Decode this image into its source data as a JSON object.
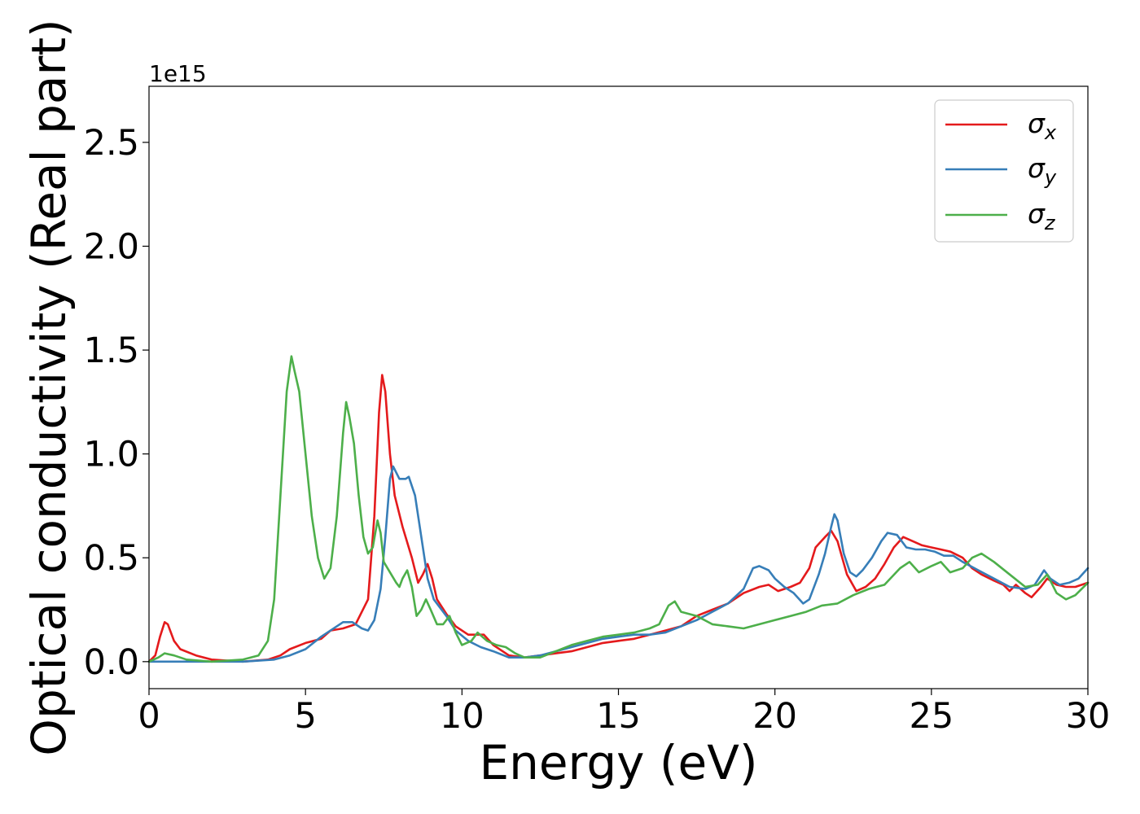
{
  "chart_data": {
    "type": "line",
    "title": "",
    "xlabel": "Energy (eV)",
    "ylabel": "Optical conductivity (Real part)",
    "offset_text": "1e15",
    "xlim": [
      0,
      30
    ],
    "ylim": [
      -0.13,
      2.77
    ],
    "y_scale_factor": 1000000000000000.0,
    "xticks": [
      0,
      5,
      10,
      15,
      20,
      25,
      30
    ],
    "xtick_labels": [
      "0",
      "5",
      "10",
      "15",
      "20",
      "25",
      "30"
    ],
    "yticks": [
      0.0,
      0.5,
      1.0,
      1.5,
      2.0,
      2.5
    ],
    "ytick_labels": [
      "0.0",
      "0.5",
      "1.0",
      "1.5",
      "2.0",
      "2.5"
    ],
    "grid": false,
    "legend_position": "top-right",
    "series": [
      {
        "name": "σ_x",
        "label_base": "σ",
        "label_sub": "x",
        "color": "#e41a1c",
        "points": [
          [
            0,
            0
          ],
          [
            0.2,
            0.03
          ],
          [
            0.35,
            0.12
          ],
          [
            0.5,
            0.19
          ],
          [
            0.6,
            0.18
          ],
          [
            0.8,
            0.1
          ],
          [
            1.0,
            0.06
          ],
          [
            1.5,
            0.03
          ],
          [
            2.0,
            0.01
          ],
          [
            3.0,
            0.0
          ],
          [
            3.8,
            0.01
          ],
          [
            4.2,
            0.03
          ],
          [
            4.5,
            0.06
          ],
          [
            5.0,
            0.09
          ],
          [
            5.5,
            0.11
          ],
          [
            5.8,
            0.15
          ],
          [
            6.2,
            0.16
          ],
          [
            6.6,
            0.18
          ],
          [
            7.0,
            0.3
          ],
          [
            7.2,
            0.7
          ],
          [
            7.35,
            1.2
          ],
          [
            7.45,
            1.38
          ],
          [
            7.55,
            1.3
          ],
          [
            7.7,
            1.0
          ],
          [
            7.85,
            0.8
          ],
          [
            8.1,
            0.65
          ],
          [
            8.4,
            0.5
          ],
          [
            8.6,
            0.38
          ],
          [
            8.75,
            0.42
          ],
          [
            8.9,
            0.47
          ],
          [
            9.05,
            0.4
          ],
          [
            9.2,
            0.3
          ],
          [
            9.5,
            0.23
          ],
          [
            9.8,
            0.17
          ],
          [
            10.2,
            0.13
          ],
          [
            10.5,
            0.13
          ],
          [
            10.7,
            0.13
          ],
          [
            11.0,
            0.08
          ],
          [
            11.5,
            0.03
          ],
          [
            12.0,
            0.02
          ],
          [
            12.5,
            0.03
          ],
          [
            13.0,
            0.04
          ],
          [
            13.5,
            0.05
          ],
          [
            14.0,
            0.07
          ],
          [
            14.5,
            0.09
          ],
          [
            15.0,
            0.1
          ],
          [
            15.5,
            0.11
          ],
          [
            16.0,
            0.13
          ],
          [
            16.5,
            0.15
          ],
          [
            17.0,
            0.17
          ],
          [
            17.5,
            0.22
          ],
          [
            18.0,
            0.25
          ],
          [
            18.5,
            0.28
          ],
          [
            19.0,
            0.33
          ],
          [
            19.5,
            0.36
          ],
          [
            19.8,
            0.37
          ],
          [
            20.1,
            0.34
          ],
          [
            20.5,
            0.36
          ],
          [
            20.8,
            0.38
          ],
          [
            21.1,
            0.45
          ],
          [
            21.3,
            0.55
          ],
          [
            21.6,
            0.6
          ],
          [
            21.8,
            0.63
          ],
          [
            22.0,
            0.58
          ],
          [
            22.3,
            0.42
          ],
          [
            22.6,
            0.34
          ],
          [
            22.9,
            0.36
          ],
          [
            23.2,
            0.4
          ],
          [
            23.5,
            0.47
          ],
          [
            23.8,
            0.55
          ],
          [
            24.1,
            0.6
          ],
          [
            24.4,
            0.58
          ],
          [
            24.7,
            0.56
          ],
          [
            25.0,
            0.55
          ],
          [
            25.3,
            0.54
          ],
          [
            25.6,
            0.53
          ],
          [
            26.0,
            0.5
          ],
          [
            26.3,
            0.45
          ],
          [
            26.6,
            0.42
          ],
          [
            27.0,
            0.39
          ],
          [
            27.3,
            0.37
          ],
          [
            27.5,
            0.34
          ],
          [
            27.7,
            0.37
          ],
          [
            28.0,
            0.33
          ],
          [
            28.2,
            0.31
          ],
          [
            28.5,
            0.36
          ],
          [
            28.7,
            0.4
          ],
          [
            29.0,
            0.37
          ],
          [
            29.3,
            0.36
          ],
          [
            29.6,
            0.36
          ],
          [
            30,
            0.38
          ]
        ]
      },
      {
        "name": "σ_y",
        "label_base": "σ",
        "label_sub": "y",
        "color": "#377eb8",
        "points": [
          [
            0,
            0
          ],
          [
            1.0,
            0.0
          ],
          [
            3.0,
            0.0
          ],
          [
            4.0,
            0.01
          ],
          [
            4.5,
            0.03
          ],
          [
            5.0,
            0.06
          ],
          [
            5.5,
            0.12
          ],
          [
            5.8,
            0.15
          ],
          [
            6.2,
            0.19
          ],
          [
            6.5,
            0.19
          ],
          [
            6.8,
            0.16
          ],
          [
            7.0,
            0.15
          ],
          [
            7.2,
            0.2
          ],
          [
            7.4,
            0.35
          ],
          [
            7.55,
            0.6
          ],
          [
            7.7,
            0.88
          ],
          [
            7.8,
            0.94
          ],
          [
            8.0,
            0.88
          ],
          [
            8.2,
            0.88
          ],
          [
            8.3,
            0.89
          ],
          [
            8.5,
            0.8
          ],
          [
            8.7,
            0.6
          ],
          [
            8.9,
            0.4
          ],
          [
            9.1,
            0.3
          ],
          [
            9.5,
            0.22
          ],
          [
            9.8,
            0.15
          ],
          [
            10.2,
            0.1
          ],
          [
            10.6,
            0.07
          ],
          [
            11.0,
            0.05
          ],
          [
            11.5,
            0.02
          ],
          [
            12.0,
            0.02
          ],
          [
            12.5,
            0.03
          ],
          [
            13.0,
            0.05
          ],
          [
            13.5,
            0.07
          ],
          [
            14.0,
            0.09
          ],
          [
            14.5,
            0.11
          ],
          [
            15.0,
            0.12
          ],
          [
            15.5,
            0.13
          ],
          [
            16.0,
            0.13
          ],
          [
            16.5,
            0.14
          ],
          [
            17.0,
            0.17
          ],
          [
            17.5,
            0.2
          ],
          [
            18.0,
            0.24
          ],
          [
            18.5,
            0.28
          ],
          [
            19.0,
            0.35
          ],
          [
            19.3,
            0.45
          ],
          [
            19.5,
            0.46
          ],
          [
            19.8,
            0.44
          ],
          [
            20.0,
            0.4
          ],
          [
            20.3,
            0.36
          ],
          [
            20.6,
            0.33
          ],
          [
            20.9,
            0.28
          ],
          [
            21.1,
            0.3
          ],
          [
            21.4,
            0.42
          ],
          [
            21.6,
            0.52
          ],
          [
            21.8,
            0.65
          ],
          [
            21.9,
            0.71
          ],
          [
            22.0,
            0.68
          ],
          [
            22.2,
            0.52
          ],
          [
            22.4,
            0.43
          ],
          [
            22.6,
            0.41
          ],
          [
            22.8,
            0.44
          ],
          [
            23.1,
            0.5
          ],
          [
            23.4,
            0.58
          ],
          [
            23.6,
            0.62
          ],
          [
            23.9,
            0.61
          ],
          [
            24.2,
            0.55
          ],
          [
            24.5,
            0.54
          ],
          [
            24.8,
            0.54
          ],
          [
            25.1,
            0.53
          ],
          [
            25.4,
            0.51
          ],
          [
            25.7,
            0.51
          ],
          [
            26.0,
            0.48
          ],
          [
            26.5,
            0.44
          ],
          [
            27.0,
            0.4
          ],
          [
            27.5,
            0.36
          ],
          [
            28.0,
            0.35
          ],
          [
            28.3,
            0.37
          ],
          [
            28.6,
            0.44
          ],
          [
            28.8,
            0.4
          ],
          [
            29.1,
            0.37
          ],
          [
            29.4,
            0.38
          ],
          [
            29.7,
            0.4
          ],
          [
            30,
            0.45
          ]
        ]
      },
      {
        "name": "σ_z",
        "label_base": "σ",
        "label_sub": "z",
        "color": "#4daf4a",
        "points": [
          [
            0,
            0
          ],
          [
            0.3,
            0.02
          ],
          [
            0.5,
            0.04
          ],
          [
            0.8,
            0.03
          ],
          [
            1.2,
            0.01
          ],
          [
            2.0,
            0.0
          ],
          [
            3.0,
            0.01
          ],
          [
            3.5,
            0.03
          ],
          [
            3.8,
            0.1
          ],
          [
            4.0,
            0.3
          ],
          [
            4.2,
            0.8
          ],
          [
            4.4,
            1.3
          ],
          [
            4.55,
            1.47
          ],
          [
            4.65,
            1.4
          ],
          [
            4.8,
            1.3
          ],
          [
            5.0,
            1.0
          ],
          [
            5.2,
            0.7
          ],
          [
            5.4,
            0.5
          ],
          [
            5.6,
            0.4
          ],
          [
            5.8,
            0.45
          ],
          [
            6.0,
            0.7
          ],
          [
            6.2,
            1.1
          ],
          [
            6.3,
            1.25
          ],
          [
            6.4,
            1.18
          ],
          [
            6.55,
            1.05
          ],
          [
            6.7,
            0.8
          ],
          [
            6.85,
            0.6
          ],
          [
            7.0,
            0.52
          ],
          [
            7.15,
            0.55
          ],
          [
            7.3,
            0.68
          ],
          [
            7.4,
            0.62
          ],
          [
            7.5,
            0.48
          ],
          [
            7.7,
            0.43
          ],
          [
            7.9,
            0.38
          ],
          [
            8.0,
            0.36
          ],
          [
            8.1,
            0.4
          ],
          [
            8.25,
            0.44
          ],
          [
            8.4,
            0.36
          ],
          [
            8.55,
            0.22
          ],
          [
            8.7,
            0.25
          ],
          [
            8.85,
            0.3
          ],
          [
            9.0,
            0.25
          ],
          [
            9.2,
            0.18
          ],
          [
            9.4,
            0.18
          ],
          [
            9.6,
            0.22
          ],
          [
            9.8,
            0.14
          ],
          [
            10.0,
            0.08
          ],
          [
            10.3,
            0.1
          ],
          [
            10.5,
            0.14
          ],
          [
            10.8,
            0.1
          ],
          [
            11.1,
            0.08
          ],
          [
            11.4,
            0.07
          ],
          [
            11.7,
            0.04
          ],
          [
            12.0,
            0.02
          ],
          [
            12.5,
            0.02
          ],
          [
            13.0,
            0.05
          ],
          [
            13.5,
            0.08
          ],
          [
            14.0,
            0.1
          ],
          [
            14.5,
            0.12
          ],
          [
            15.0,
            0.13
          ],
          [
            15.5,
            0.14
          ],
          [
            16.0,
            0.16
          ],
          [
            16.3,
            0.18
          ],
          [
            16.6,
            0.27
          ],
          [
            16.8,
            0.29
          ],
          [
            17.0,
            0.24
          ],
          [
            17.5,
            0.22
          ],
          [
            18.0,
            0.18
          ],
          [
            18.5,
            0.17
          ],
          [
            19.0,
            0.16
          ],
          [
            19.5,
            0.18
          ],
          [
            20.0,
            0.2
          ],
          [
            20.5,
            0.22
          ],
          [
            21.0,
            0.24
          ],
          [
            21.5,
            0.27
          ],
          [
            22.0,
            0.28
          ],
          [
            22.5,
            0.32
          ],
          [
            23.0,
            0.35
          ],
          [
            23.5,
            0.37
          ],
          [
            24.0,
            0.45
          ],
          [
            24.3,
            0.48
          ],
          [
            24.6,
            0.43
          ],
          [
            25.0,
            0.46
          ],
          [
            25.3,
            0.48
          ],
          [
            25.6,
            0.43
          ],
          [
            26.0,
            0.45
          ],
          [
            26.3,
            0.5
          ],
          [
            26.6,
            0.52
          ],
          [
            27.0,
            0.48
          ],
          [
            27.5,
            0.42
          ],
          [
            28.0,
            0.36
          ],
          [
            28.4,
            0.37
          ],
          [
            28.7,
            0.42
          ],
          [
            29.0,
            0.33
          ],
          [
            29.3,
            0.3
          ],
          [
            29.6,
            0.32
          ],
          [
            30,
            0.38
          ]
        ]
      }
    ]
  }
}
